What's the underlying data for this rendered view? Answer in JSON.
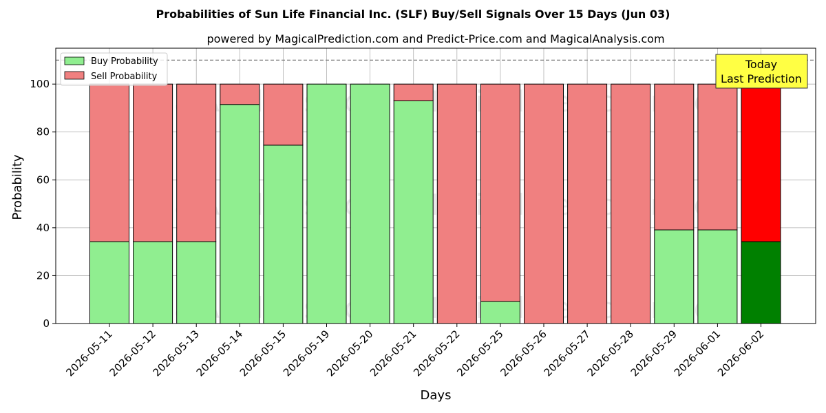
{
  "chart_data": {
    "type": "bar",
    "title": "Probabilities of Sun Life Financial Inc. (SLF) Buy/Sell Signals Over 15 Days (Jun 03)",
    "subtitle": "powered by MagicalPrediction.com and Predict-Price.com and MagicalAnalysis.com",
    "xlabel": "Days",
    "ylabel": "Probability",
    "ylim": [
      0,
      115
    ],
    "yticks": [
      0,
      20,
      40,
      60,
      80,
      100
    ],
    "grid": true,
    "stacked": true,
    "reference_line": 110,
    "categories": [
      "2026-05-11",
      "2026-05-12",
      "2026-05-13",
      "2026-05-14",
      "2026-05-15",
      "2026-05-19",
      "2026-05-20",
      "2026-05-21",
      "2026-05-22",
      "2026-05-25",
      "2026-05-26",
      "2026-05-27",
      "2026-05-28",
      "2026-05-29",
      "2026-06-01",
      "2026-06-02"
    ],
    "series": [
      {
        "name": "Buy Probability",
        "color": "#90ee90",
        "values": [
          34.2,
          34.2,
          34.2,
          91.5,
          74.5,
          100,
          100,
          93,
          0,
          9.2,
          0,
          0,
          0,
          39.1,
          39.1,
          34.2
        ]
      },
      {
        "name": "Sell Probability",
        "color": "#f08080",
        "values": [
          65.8,
          65.8,
          65.8,
          8.5,
          25.5,
          0,
          0,
          7,
          100,
          90.8,
          100,
          100,
          100,
          60.9,
          60.9,
          65.8
        ]
      }
    ],
    "highlight": {
      "index": 15,
      "buy_color": "#008000",
      "sell_color": "#ff0000"
    },
    "legend": {
      "position": "top-left"
    },
    "annotation": {
      "lines": [
        "Today",
        "Last Prediction"
      ],
      "color": "#ffff44"
    },
    "watermarks": [
      "MagicalAnalysis.com",
      "MagicalPrediction.com"
    ]
  }
}
